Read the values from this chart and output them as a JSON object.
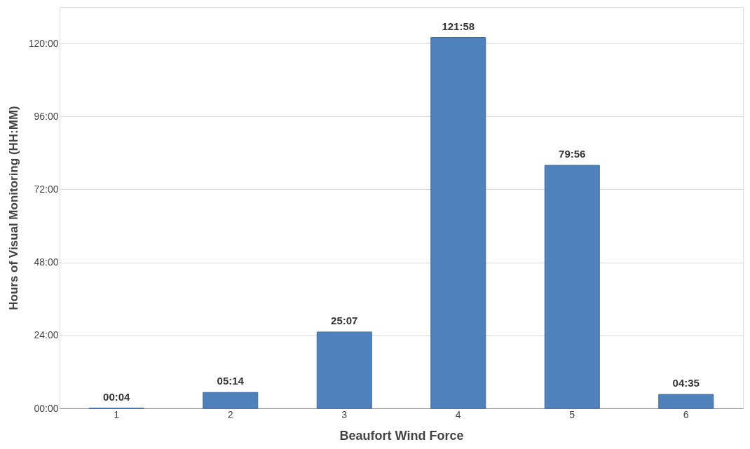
{
  "chart_data": {
    "type": "bar",
    "xlabel": "Beaufort Wind Force",
    "ylabel": "Hours of Visual Monitoring (HH:MM)",
    "categories": [
      "1",
      "2",
      "3",
      "4",
      "5",
      "6"
    ],
    "values": [
      0.0667,
      5.2333,
      25.1167,
      121.9667,
      79.9333,
      4.5833
    ],
    "value_labels": [
      "00:04",
      "05:14",
      "25:07",
      "121:58",
      "79:56",
      "04:35"
    ],
    "color": "#4f81bd",
    "ylim": [
      0,
      132
    ],
    "yticks": [
      {
        "value": 0,
        "label": "00:00"
      },
      {
        "value": 24,
        "label": "24:00"
      },
      {
        "value": 48,
        "label": "48:00"
      },
      {
        "value": 72,
        "label": "72:00"
      },
      {
        "value": 96,
        "label": "96:00"
      },
      {
        "value": 120,
        "label": "120:00"
      }
    ],
    "grid": "y"
  }
}
